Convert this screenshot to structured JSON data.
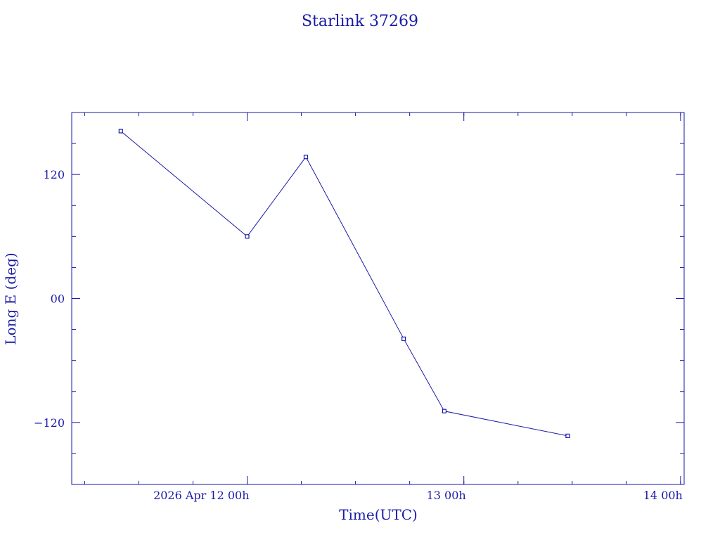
{
  "chart_data": {
    "type": "line",
    "title": "Starlink 37269",
    "xlabel": "Time(UTC)",
    "ylabel": "Long E (deg)",
    "x_unit": "hours",
    "xlim": [
      "2026-04-11T04:34",
      "2026-04-14T00:24"
    ],
    "ylim": [
      -180,
      180
    ],
    "x_tick_labels": [
      {
        "x": "2026-04-12T00:00",
        "label": "2026 Apr 12  00h"
      },
      {
        "x": "2026-04-13T00:00",
        "label": "13  00h"
      },
      {
        "x": "2026-04-14T00:00",
        "label": "14  00h"
      }
    ],
    "y_ticks": [
      -120,
      0,
      120
    ],
    "y_tick_labels": [
      "−120",
      "00",
      "120"
    ],
    "series": [
      {
        "points": [
          {
            "x": "2026-04-11T10:00",
            "y": 162
          },
          {
            "x": "2026-04-12T00:00",
            "y": 60
          },
          {
            "x": "2026-04-12T06:30",
            "y": 137
          },
          {
            "x": "2026-04-12T17:20",
            "y": -39
          },
          {
            "x": "2026-04-12T21:50",
            "y": -109
          },
          {
            "x": "2026-04-13T11:30",
            "y": -133
          }
        ]
      }
    ],
    "grid": false,
    "legend": "none",
    "color": "#1a1aa8"
  }
}
